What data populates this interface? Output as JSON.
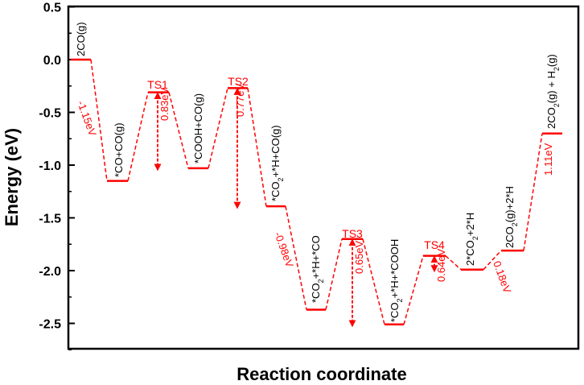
{
  "colors": {
    "accent": "#ff0000",
    "axis": "#000000"
  },
  "chart_data": {
    "type": "line",
    "title": "",
    "xlabel": "Reaction coordinate",
    "ylabel": "Energy (eV)",
    "ylim": [
      -2.85,
      0.5
    ],
    "yticks": [
      "0.5",
      "0.0",
      "-0.5",
      "-1.0",
      "-1.5",
      "-2.0",
      "-2.5"
    ],
    "ytick_values": [
      0.5,
      0.0,
      -0.5,
      -1.0,
      -1.5,
      -2.0,
      -2.5
    ],
    "grid": false,
    "series": [
      {
        "values": [
          0.0,
          -1.15,
          -0.31,
          -1.03,
          -0.27,
          -1.39,
          -2.37,
          -1.7,
          -2.51,
          -1.86,
          -1.99,
          -1.81,
          -0.7
        ]
      }
    ],
    "states": [
      {
        "label": "2CO(g)",
        "energy": 0.0
      },
      {
        "label": "*CO+CO(g)",
        "energy": -1.15
      },
      {
        "label": "TS1",
        "energy": -0.31
      },
      {
        "label": "*COOH+CO(g)",
        "energy": -1.03
      },
      {
        "label": "TS2",
        "energy": -0.27
      },
      {
        "label": "*CO₂+*H+CO(g)",
        "energy": -1.39
      },
      {
        "label": "*CO₂+*H+*CO",
        "energy": -2.37
      },
      {
        "label": "TS3",
        "energy": -1.7
      },
      {
        "label": "*CO₂+*H+*COOH",
        "energy": -2.51
      },
      {
        "label": "TS4",
        "energy": -1.86
      },
      {
        "label": "2*CO₂+2*H",
        "energy": -1.99
      },
      {
        "label": "2CO₂(g)+2*H",
        "energy": -1.81
      },
      {
        "label": "2CO₂(g) + H₂(g)",
        "energy": -0.7
      }
    ],
    "annotations": [
      "-1.15eV",
      "0.83eV",
      "0.77eV",
      "-0.98eV",
      "0.65eV",
      "0.64eV",
      "0.18eV",
      "1.11eV"
    ]
  }
}
